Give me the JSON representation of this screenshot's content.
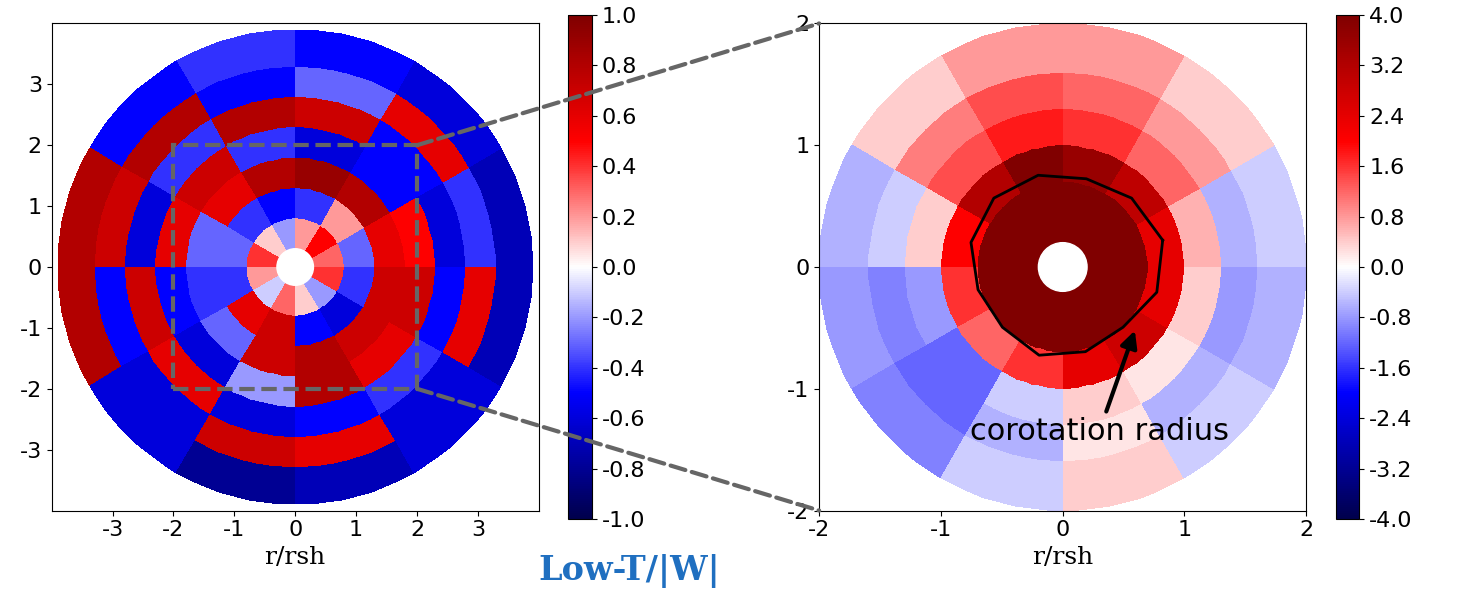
{
  "chart_data": [
    {
      "type": "heatmap",
      "xlabel": "r/rsh",
      "annotation": "Low-T/|W|",
      "xlim": [
        -4,
        4
      ],
      "ylim": [
        -4,
        4
      ],
      "xticks": [
        -3,
        -2,
        -1,
        0,
        1,
        2,
        3
      ],
      "yticks": [
        -3,
        -2,
        -1,
        0,
        1,
        2,
        3
      ],
      "r_edges": [
        0.3,
        0.8,
        1.3,
        1.8,
        2.3,
        2.8,
        3.3,
        3.9
      ],
      "theta_edges": [
        0,
        30,
        60,
        90,
        120,
        150,
        180,
        210,
        240,
        270,
        300,
        330,
        360
      ],
      "cells": [
        [
          0.3,
          0.5,
          0.2,
          -0.2,
          0.1,
          0.4,
          0.2,
          -0.1,
          0.3,
          0.1,
          -0.2,
          0.4
        ],
        [
          -0.3,
          0.2,
          -0.4,
          -0.5,
          -0.4,
          -0.3,
          -0.4,
          0.6,
          0.7,
          -0.5,
          -0.6,
          -0.4
        ],
        [
          0.6,
          0.8,
          0.9,
          0.8,
          0.6,
          -0.3,
          -0.4,
          -0.3,
          0.7,
          0.8,
          0.7,
          0.7
        ],
        [
          0.5,
          -0.5,
          -0.6,
          -0.4,
          0.7,
          0.6,
          -0.5,
          -0.6,
          -0.2,
          0.8,
          0.6,
          0.7
        ],
        [
          -0.6,
          -0.5,
          0.7,
          0.8,
          -0.4,
          -0.6,
          0.7,
          0.6,
          -0.6,
          -0.5,
          -0.4,
          -0.5
        ],
        [
          -0.4,
          0.6,
          -0.3,
          -0.5,
          0.8,
          0.7,
          -0.5,
          -0.6,
          0.7,
          0.6,
          -0.6,
          0.6
        ],
        [
          -0.7,
          -0.6,
          -0.5,
          -0.4,
          -0.5,
          0.8,
          0.8,
          -0.6,
          -0.8,
          -0.7,
          -0.6,
          -0.7
        ]
      ],
      "clim": [
        -1.0,
        1.0
      ],
      "cticks": [
        -1.0,
        -0.8,
        -0.6,
        -0.4,
        -0.2,
        0.0,
        0.2,
        0.4,
        0.6,
        0.8,
        1.0
      ]
    },
    {
      "type": "heatmap",
      "xlabel": "r/rsh",
      "annotation": "corotation radius",
      "xlim": [
        -2,
        2
      ],
      "ylim": [
        -2,
        2
      ],
      "xticks": [
        -2,
        -1,
        0,
        1,
        2
      ],
      "yticks": [
        -2,
        -1,
        0,
        1,
        2
      ],
      "r_edges": [
        0.15,
        0.4,
        0.7,
        1.0,
        1.3,
        1.6,
        2.0
      ],
      "theta_edges": [
        0,
        30,
        60,
        90,
        120,
        150,
        180,
        210,
        240,
        270,
        300,
        330,
        360
      ],
      "cells": [
        [
          4.0,
          4.0,
          4.0,
          4.0,
          4.0,
          4.0,
          4.0,
          4.0,
          4.0,
          4.0,
          4.0,
          4.0
        ],
        [
          4.0,
          4.0,
          4.0,
          4.0,
          4.0,
          4.0,
          4.0,
          4.0,
          4.0,
          4.0,
          4.0,
          4.0
        ],
        [
          2.4,
          3.0,
          3.6,
          4.0,
          3.2,
          2.0,
          1.6,
          1.2,
          1.6,
          2.4,
          2.8,
          2.4
        ],
        [
          0.6,
          1.2,
          1.6,
          1.8,
          1.4,
          0.4,
          -0.8,
          -1.2,
          -0.4,
          0.4,
          0.2,
          0.4
        ],
        [
          -0.6,
          0.8,
          1.2,
          1.4,
          1.0,
          -0.4,
          -1.0,
          -1.2,
          -0.6,
          0.2,
          -0.6,
          -0.8
        ],
        [
          -0.4,
          0.4,
          0.8,
          0.8,
          0.4,
          -0.6,
          -0.8,
          -1.0,
          -0.4,
          0.4,
          -0.4,
          -0.6
        ]
      ],
      "corotation_radius": [
        0.85,
        0.8,
        0.75,
        0.78,
        0.8,
        0.78,
        0.72,
        0.7,
        0.75,
        0.72,
        0.7,
        0.8
      ],
      "clim": [
        -4.0,
        4.0
      ],
      "cticks": [
        -4.0,
        -3.2,
        -2.4,
        -1.6,
        -0.8,
        0.0,
        0.8,
        1.6,
        2.4,
        3.2,
        4.0
      ]
    }
  ]
}
